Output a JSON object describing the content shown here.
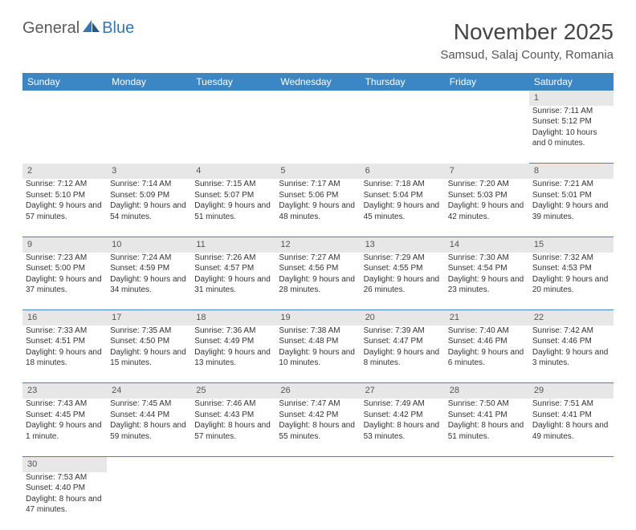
{
  "logo": {
    "part1": "General",
    "part2": "Blue"
  },
  "title": "November 2025",
  "location": "Samsud, Salaj County, Romania",
  "header_bg": "#3b86c4",
  "daynum_bg": "#e7e7e7",
  "row_divider": "#3b86c4",
  "day_headers": [
    "Sunday",
    "Monday",
    "Tuesday",
    "Wednesday",
    "Thursday",
    "Friday",
    "Saturday"
  ],
  "weeks": [
    {
      "nums": [
        "",
        "",
        "",
        "",
        "",
        "",
        "1"
      ],
      "cells": [
        "",
        "",
        "",
        "",
        "",
        "",
        "Sunrise: 7:11 AM\nSunset: 5:12 PM\nDaylight: 10 hours and 0 minutes."
      ]
    },
    {
      "nums": [
        "2",
        "3",
        "4",
        "5",
        "6",
        "7",
        "8"
      ],
      "cells": [
        "Sunrise: 7:12 AM\nSunset: 5:10 PM\nDaylight: 9 hours and 57 minutes.",
        "Sunrise: 7:14 AM\nSunset: 5:09 PM\nDaylight: 9 hours and 54 minutes.",
        "Sunrise: 7:15 AM\nSunset: 5:07 PM\nDaylight: 9 hours and 51 minutes.",
        "Sunrise: 7:17 AM\nSunset: 5:06 PM\nDaylight: 9 hours and 48 minutes.",
        "Sunrise: 7:18 AM\nSunset: 5:04 PM\nDaylight: 9 hours and 45 minutes.",
        "Sunrise: 7:20 AM\nSunset: 5:03 PM\nDaylight: 9 hours and 42 minutes.",
        "Sunrise: 7:21 AM\nSunset: 5:01 PM\nDaylight: 9 hours and 39 minutes."
      ]
    },
    {
      "nums": [
        "9",
        "10",
        "11",
        "12",
        "13",
        "14",
        "15"
      ],
      "cells": [
        "Sunrise: 7:23 AM\nSunset: 5:00 PM\nDaylight: 9 hours and 37 minutes.",
        "Sunrise: 7:24 AM\nSunset: 4:59 PM\nDaylight: 9 hours and 34 minutes.",
        "Sunrise: 7:26 AM\nSunset: 4:57 PM\nDaylight: 9 hours and 31 minutes.",
        "Sunrise: 7:27 AM\nSunset: 4:56 PM\nDaylight: 9 hours and 28 minutes.",
        "Sunrise: 7:29 AM\nSunset: 4:55 PM\nDaylight: 9 hours and 26 minutes.",
        "Sunrise: 7:30 AM\nSunset: 4:54 PM\nDaylight: 9 hours and 23 minutes.",
        "Sunrise: 7:32 AM\nSunset: 4:53 PM\nDaylight: 9 hours and 20 minutes."
      ]
    },
    {
      "nums": [
        "16",
        "17",
        "18",
        "19",
        "20",
        "21",
        "22"
      ],
      "cells": [
        "Sunrise: 7:33 AM\nSunset: 4:51 PM\nDaylight: 9 hours and 18 minutes.",
        "Sunrise: 7:35 AM\nSunset: 4:50 PM\nDaylight: 9 hours and 15 minutes.",
        "Sunrise: 7:36 AM\nSunset: 4:49 PM\nDaylight: 9 hours and 13 minutes.",
        "Sunrise: 7:38 AM\nSunset: 4:48 PM\nDaylight: 9 hours and 10 minutes.",
        "Sunrise: 7:39 AM\nSunset: 4:47 PM\nDaylight: 9 hours and 8 minutes.",
        "Sunrise: 7:40 AM\nSunset: 4:46 PM\nDaylight: 9 hours and 6 minutes.",
        "Sunrise: 7:42 AM\nSunset: 4:46 PM\nDaylight: 9 hours and 3 minutes."
      ]
    },
    {
      "nums": [
        "23",
        "24",
        "25",
        "26",
        "27",
        "28",
        "29"
      ],
      "cells": [
        "Sunrise: 7:43 AM\nSunset: 4:45 PM\nDaylight: 9 hours and 1 minute.",
        "Sunrise: 7:45 AM\nSunset: 4:44 PM\nDaylight: 8 hours and 59 minutes.",
        "Sunrise: 7:46 AM\nSunset: 4:43 PM\nDaylight: 8 hours and 57 minutes.",
        "Sunrise: 7:47 AM\nSunset: 4:42 PM\nDaylight: 8 hours and 55 minutes.",
        "Sunrise: 7:49 AM\nSunset: 4:42 PM\nDaylight: 8 hours and 53 minutes.",
        "Sunrise: 7:50 AM\nSunset: 4:41 PM\nDaylight: 8 hours and 51 minutes.",
        "Sunrise: 7:51 AM\nSunset: 4:41 PM\nDaylight: 8 hours and 49 minutes."
      ]
    },
    {
      "nums": [
        "30",
        "",
        "",
        "",
        "",
        "",
        ""
      ],
      "cells": [
        "Sunrise: 7:53 AM\nSunset: 4:40 PM\nDaylight: 8 hours and 47 minutes.",
        "",
        "",
        "",
        "",
        "",
        ""
      ]
    }
  ]
}
